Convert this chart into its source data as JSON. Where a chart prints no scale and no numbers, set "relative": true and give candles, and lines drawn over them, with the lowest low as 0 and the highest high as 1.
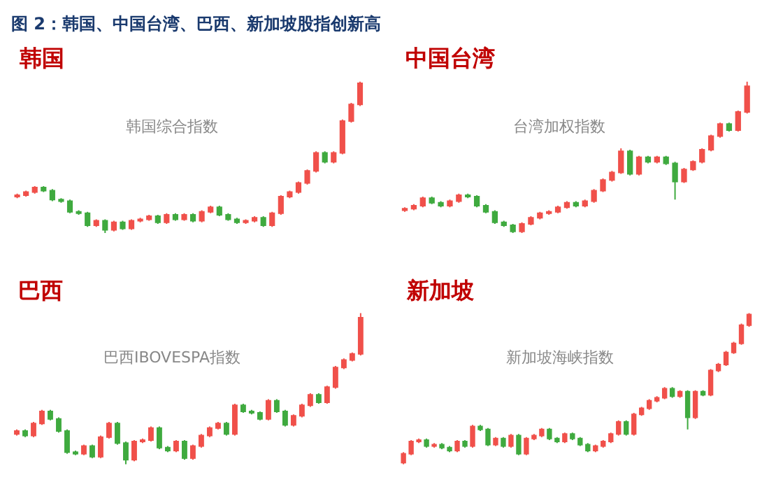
{
  "chart_data": [
    {
      "type": "other",
      "title": "图 2：韩国、中国台湾、巴西、新加坡股指创新高"
    },
    {
      "type": "candlestick",
      "title": "韩国",
      "annotations": [
        "韩国综合指数"
      ],
      "relative": true,
      "tick_labels": false,
      "categories": [
        null,
        null,
        null,
        null,
        null,
        null,
        null,
        null,
        null,
        null,
        null,
        null,
        null,
        null,
        null,
        null,
        null,
        null,
        null,
        null,
        null,
        null,
        null,
        null,
        null,
        null,
        null,
        null,
        null,
        null,
        null,
        null,
        null,
        null,
        null,
        null,
        null,
        null,
        null,
        null
      ],
      "ohlc": [
        [
          0.24,
          0.26,
          0.23,
          0.25
        ],
        [
          0.25,
          0.28,
          0.24,
          0.27
        ],
        [
          0.27,
          0.31,
          0.26,
          0.3
        ],
        [
          0.3,
          0.31,
          0.27,
          0.28
        ],
        [
          0.28,
          0.29,
          0.21,
          0.22
        ],
        [
          0.22,
          0.23,
          0.2,
          0.21
        ],
        [
          0.21,
          0.22,
          0.13,
          0.14
        ],
        [
          0.14,
          0.15,
          0.12,
          0.13
        ],
        [
          0.13,
          0.14,
          0.04,
          0.05
        ],
        [
          0.05,
          0.09,
          0.04,
          0.08
        ],
        [
          0.08,
          0.09,
          0,
          0.02
        ],
        [
          0.02,
          0.08,
          0.01,
          0.07
        ],
        [
          0.07,
          0.08,
          0.02,
          0.03
        ],
        [
          0.03,
          0.09,
          0.02,
          0.08
        ],
        [
          0.08,
          0.1,
          0.07,
          0.09
        ],
        [
          0.09,
          0.12,
          0.08,
          0.11
        ],
        [
          0.11,
          0.12,
          0.06,
          0.07
        ],
        [
          0.07,
          0.13,
          0.06,
          0.12
        ],
        [
          0.12,
          0.13,
          0.08,
          0.09
        ],
        [
          0.09,
          0.13,
          0.08,
          0.12
        ],
        [
          0.12,
          0.13,
          0.07,
          0.08
        ],
        [
          0.08,
          0.15,
          0.07,
          0.14
        ],
        [
          0.14,
          0.18,
          0.13,
          0.17
        ],
        [
          0.17,
          0.18,
          0.11,
          0.12
        ],
        [
          0.12,
          0.13,
          0.08,
          0.09
        ],
        [
          0.09,
          0.1,
          0.06,
          0.07
        ],
        [
          0.07,
          0.09,
          0.06,
          0.08
        ],
        [
          0.08,
          0.11,
          0.07,
          0.1
        ],
        [
          0.1,
          0.11,
          0.04,
          0.05
        ],
        [
          0.05,
          0.14,
          0.04,
          0.13
        ],
        [
          0.13,
          0.25,
          0.12,
          0.24
        ],
        [
          0.24,
          0.28,
          0.23,
          0.27
        ],
        [
          0.27,
          0.34,
          0.26,
          0.33
        ],
        [
          0.33,
          0.42,
          0.32,
          0.41
        ],
        [
          0.41,
          0.54,
          0.4,
          0.53
        ],
        [
          0.53,
          0.54,
          0.46,
          0.47
        ],
        [
          0.47,
          0.54,
          0.46,
          0.53
        ],
        [
          0.53,
          0.75,
          0.52,
          0.74
        ],
        [
          0.74,
          0.86,
          0.73,
          0.85
        ],
        [
          0.85,
          1,
          0.84,
          0.99
        ]
      ]
    },
    {
      "type": "candlestick",
      "title": "中国台湾",
      "annotations": [
        "台湾加权指数"
      ],
      "relative": true,
      "tick_labels": false,
      "categories": [
        null,
        null,
        null,
        null,
        null,
        null,
        null,
        null,
        null,
        null,
        null,
        null,
        null,
        null,
        null,
        null,
        null,
        null,
        null,
        null,
        null,
        null,
        null,
        null,
        null,
        null,
        null,
        null,
        null,
        null,
        null,
        null,
        null,
        null,
        null,
        null,
        null,
        null,
        null
      ],
      "ohlc": [
        [
          0.15,
          0.17,
          0.14,
          0.16
        ],
        [
          0.16,
          0.19,
          0.15,
          0.18
        ],
        [
          0.18,
          0.24,
          0.17,
          0.23
        ],
        [
          0.23,
          0.24,
          0.19,
          0.2
        ],
        [
          0.2,
          0.21,
          0.17,
          0.18
        ],
        [
          0.18,
          0.22,
          0.17,
          0.21
        ],
        [
          0.21,
          0.26,
          0.2,
          0.25
        ],
        [
          0.25,
          0.26,
          0.23,
          0.24
        ],
        [
          0.24,
          0.25,
          0.17,
          0.18
        ],
        [
          0.18,
          0.19,
          0.13,
          0.14
        ],
        [
          0.14,
          0.15,
          0.06,
          0.07
        ],
        [
          0.07,
          0.08,
          0.04,
          0.05
        ],
        [
          0.05,
          0.06,
          0,
          0.01
        ],
        [
          0.01,
          0.07,
          0,
          0.06
        ],
        [
          0.06,
          0.11,
          0.05,
          0.1
        ],
        [
          0.1,
          0.14,
          0.09,
          0.13
        ],
        [
          0.13,
          0.15,
          0.12,
          0.14
        ],
        [
          0.14,
          0.18,
          0.13,
          0.17
        ],
        [
          0.17,
          0.21,
          0.16,
          0.2
        ],
        [
          0.2,
          0.21,
          0.17,
          0.18
        ],
        [
          0.18,
          0.22,
          0.17,
          0.21
        ],
        [
          0.21,
          0.29,
          0.2,
          0.28
        ],
        [
          0.28,
          0.36,
          0.27,
          0.35
        ],
        [
          0.35,
          0.41,
          0.34,
          0.4
        ],
        [
          0.4,
          0.56,
          0.39,
          0.54
        ],
        [
          0.54,
          0.55,
          0.38,
          0.39
        ],
        [
          0.39,
          0.51,
          0.38,
          0.5
        ],
        [
          0.5,
          0.51,
          0.46,
          0.47
        ],
        [
          0.47,
          0.51,
          0.46,
          0.5
        ],
        [
          0.5,
          0.51,
          0.45,
          0.46
        ],
        [
          0.46,
          0.47,
          0.22,
          0.34
        ],
        [
          0.34,
          0.43,
          0.33,
          0.42
        ],
        [
          0.42,
          0.48,
          0.41,
          0.47
        ],
        [
          0.47,
          0.56,
          0.46,
          0.55
        ],
        [
          0.55,
          0.65,
          0.54,
          0.64
        ],
        [
          0.64,
          0.73,
          0.63,
          0.72
        ],
        [
          0.72,
          0.73,
          0.67,
          0.68
        ],
        [
          0.68,
          0.81,
          0.67,
          0.8
        ],
        [
          0.8,
          1,
          0.79,
          0.97
        ]
      ]
    },
    {
      "type": "candlestick",
      "title": "巴西",
      "annotations": [
        "巴西IBOVESPA指数"
      ],
      "relative": true,
      "tick_labels": false,
      "categories": [
        null,
        null,
        null,
        null,
        null,
        null,
        null,
        null,
        null,
        null,
        null,
        null,
        null,
        null,
        null,
        null,
        null,
        null,
        null,
        null,
        null,
        null,
        null,
        null,
        null,
        null,
        null,
        null,
        null,
        null,
        null,
        null,
        null,
        null,
        null,
        null,
        null,
        null,
        null,
        null,
        null,
        null
      ],
      "ohlc": [
        [
          0.2,
          0.23,
          0.19,
          0.22
        ],
        [
          0.22,
          0.23,
          0.18,
          0.19
        ],
        [
          0.19,
          0.28,
          0.18,
          0.27
        ],
        [
          0.27,
          0.36,
          0.26,
          0.35
        ],
        [
          0.35,
          0.36,
          0.29,
          0.3
        ],
        [
          0.3,
          0.31,
          0.21,
          0.22
        ],
        [
          0.22,
          0.23,
          0.07,
          0.08
        ],
        [
          0.08,
          0.09,
          0.06,
          0.07
        ],
        [
          0.07,
          0.13,
          0.06,
          0.12
        ],
        [
          0.12,
          0.13,
          0.04,
          0.05
        ],
        [
          0.05,
          0.19,
          0.04,
          0.18
        ],
        [
          0.18,
          0.28,
          0.17,
          0.27
        ],
        [
          0.27,
          0.28,
          0.13,
          0.14
        ],
        [
          0.14,
          0.15,
          0,
          0.03
        ],
        [
          0.03,
          0.16,
          0.02,
          0.15
        ],
        [
          0.15,
          0.17,
          0.14,
          0.16
        ],
        [
          0.16,
          0.25,
          0.15,
          0.24
        ],
        [
          0.24,
          0.25,
          0.1,
          0.11
        ],
        [
          0.11,
          0.12,
          0.08,
          0.09
        ],
        [
          0.09,
          0.16,
          0.08,
          0.15
        ],
        [
          0.15,
          0.16,
          0.03,
          0.04
        ],
        [
          0.04,
          0.13,
          0.03,
          0.12
        ],
        [
          0.12,
          0.2,
          0.11,
          0.19
        ],
        [
          0.19,
          0.25,
          0.18,
          0.24
        ],
        [
          0.24,
          0.28,
          0.23,
          0.27
        ],
        [
          0.27,
          0.28,
          0.19,
          0.2
        ],
        [
          0.2,
          0.4,
          0.19,
          0.39
        ],
        [
          0.39,
          0.4,
          0.34,
          0.35
        ],
        [
          0.35,
          0.36,
          0.33,
          0.34
        ],
        [
          0.34,
          0.35,
          0.29,
          0.3
        ],
        [
          0.3,
          0.43,
          0.29,
          0.42
        ],
        [
          0.42,
          0.43,
          0.34,
          0.35
        ],
        [
          0.35,
          0.36,
          0.25,
          0.26
        ],
        [
          0.26,
          0.33,
          0.25,
          0.32
        ],
        [
          0.32,
          0.4,
          0.31,
          0.39
        ],
        [
          0.39,
          0.47,
          0.38,
          0.46
        ],
        [
          0.46,
          0.47,
          0.4,
          0.41
        ],
        [
          0.41,
          0.52,
          0.4,
          0.51
        ],
        [
          0.51,
          0.65,
          0.5,
          0.64
        ],
        [
          0.64,
          0.7,
          0.63,
          0.69
        ],
        [
          0.69,
          0.74,
          0.68,
          0.73
        ],
        [
          0.73,
          1,
          0.72,
          0.97
        ]
      ]
    },
    {
      "type": "candlestick",
      "title": "新加坡",
      "annotations": [
        "新加坡海峡指数"
      ],
      "relative": true,
      "tick_labels": false,
      "categories": [
        null,
        null,
        null,
        null,
        null,
        null,
        null,
        null,
        null,
        null,
        null,
        null,
        null,
        null,
        null,
        null,
        null,
        null,
        null,
        null,
        null,
        null,
        null,
        null,
        null,
        null,
        null,
        null,
        null,
        null,
        null,
        null,
        null,
        null,
        null,
        null,
        null,
        null,
        null,
        null,
        null,
        null,
        null,
        null,
        null,
        null
      ],
      "ohlc": [
        [
          0.01,
          0.08,
          0,
          0.07
        ],
        [
          0.07,
          0.16,
          0.06,
          0.15
        ],
        [
          0.15,
          0.17,
          0.14,
          0.16
        ],
        [
          0.16,
          0.17,
          0.11,
          0.12
        ],
        [
          0.12,
          0.14,
          0.11,
          0.13
        ],
        [
          0.13,
          0.14,
          0.1,
          0.11
        ],
        [
          0.11,
          0.12,
          0.08,
          0.09
        ],
        [
          0.09,
          0.16,
          0.08,
          0.15
        ],
        [
          0.15,
          0.16,
          0.11,
          0.12
        ],
        [
          0.12,
          0.26,
          0.11,
          0.25
        ],
        [
          0.25,
          0.26,
          0.22,
          0.23
        ],
        [
          0.23,
          0.24,
          0.12,
          0.13
        ],
        [
          0.13,
          0.18,
          0.12,
          0.17
        ],
        [
          0.17,
          0.18,
          0.11,
          0.12
        ],
        [
          0.12,
          0.2,
          0.11,
          0.19
        ],
        [
          0.19,
          0.2,
          0.06,
          0.07
        ],
        [
          0.07,
          0.18,
          0.06,
          0.17
        ],
        [
          0.17,
          0.2,
          0.16,
          0.19
        ],
        [
          0.19,
          0.24,
          0.18,
          0.23
        ],
        [
          0.23,
          0.24,
          0.16,
          0.17
        ],
        [
          0.17,
          0.18,
          0.14,
          0.15
        ],
        [
          0.15,
          0.21,
          0.14,
          0.2
        ],
        [
          0.2,
          0.21,
          0.16,
          0.17
        ],
        [
          0.17,
          0.18,
          0.12,
          0.13
        ],
        [
          0.13,
          0.14,
          0.08,
          0.09
        ],
        [
          0.09,
          0.13,
          0.08,
          0.12
        ],
        [
          0.12,
          0.16,
          0.11,
          0.15
        ],
        [
          0.15,
          0.21,
          0.14,
          0.2
        ],
        [
          0.2,
          0.29,
          0.19,
          0.28
        ],
        [
          0.28,
          0.29,
          0.19,
          0.2
        ],
        [
          0.2,
          0.34,
          0.19,
          0.33
        ],
        [
          0.33,
          0.38,
          0.32,
          0.37
        ],
        [
          0.37,
          0.43,
          0.36,
          0.42
        ],
        [
          0.42,
          0.45,
          0.41,
          0.44
        ],
        [
          0.44,
          0.51,
          0.43,
          0.5
        ],
        [
          0.5,
          0.51,
          0.44,
          0.45
        ],
        [
          0.45,
          0.49,
          0.44,
          0.48
        ],
        [
          0.48,
          0.49,
          0.23,
          0.31
        ],
        [
          0.31,
          0.49,
          0.3,
          0.48
        ],
        [
          0.48,
          0.49,
          0.45,
          0.46
        ],
        [
          0.46,
          0.63,
          0.45,
          0.62
        ],
        [
          0.62,
          0.67,
          0.61,
          0.66
        ],
        [
          0.66,
          0.75,
          0.65,
          0.74
        ],
        [
          0.74,
          0.81,
          0.73,
          0.8
        ],
        [
          0.8,
          0.93,
          0.79,
          0.92
        ],
        [
          0.92,
          1,
          0.91,
          0.99
        ]
      ]
    }
  ]
}
